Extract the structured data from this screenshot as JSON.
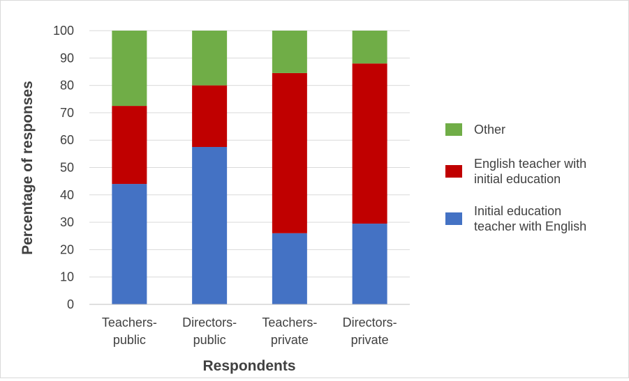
{
  "chart_data": {
    "type": "bar",
    "stacked": true,
    "title": "",
    "xlabel": "Respondents",
    "ylabel": "Percentage of responses",
    "ylim": [
      0,
      100
    ],
    "yticks": [
      0,
      10,
      20,
      30,
      40,
      50,
      60,
      70,
      80,
      90,
      100
    ],
    "grid": true,
    "legend_position": "right",
    "categories": [
      [
        "Teachers-",
        "public"
      ],
      [
        "Directors-",
        "public"
      ],
      [
        "Teachers-",
        "private"
      ],
      [
        "Directors-",
        "private"
      ]
    ],
    "series": [
      {
        "name": "Initial education teacher with English",
        "legend_lines": [
          "Initial education",
          "teacher with English"
        ],
        "color": "#4472c4",
        "values": [
          44,
          57.5,
          26,
          29.5
        ]
      },
      {
        "name": "English teacher with initial education",
        "legend_lines": [
          "English teacher with",
          "initial education"
        ],
        "color": "#c00000",
        "values": [
          28.5,
          22.5,
          58.5,
          58.5
        ]
      },
      {
        "name": "Other",
        "legend_lines": [
          "Other"
        ],
        "color": "#70ad47",
        "values": [
          27.5,
          20,
          15.5,
          12
        ]
      }
    ],
    "legend_order": [
      2,
      1,
      0
    ]
  }
}
